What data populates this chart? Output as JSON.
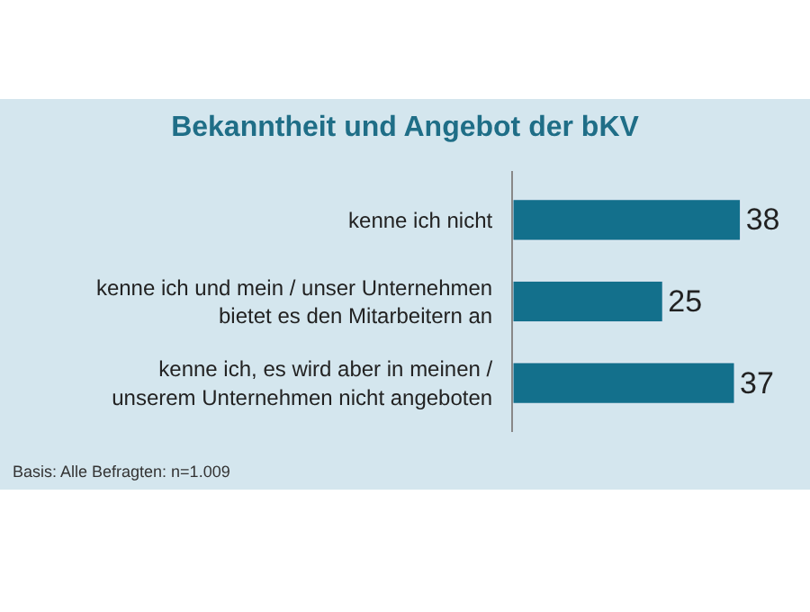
{
  "chart_data": {
    "type": "bar",
    "orientation": "horizontal",
    "title": "Bekanntheit und Angebot der bKV",
    "categories": [
      "kenne ich nicht",
      "kenne ich und mein / unser Unternehmen\nbietet es den Mitarbeitern an",
      "kenne ich, es wird aber in meinen /\nunserem Unternehmen nicht angeboten"
    ],
    "values": [
      38,
      25,
      37
    ],
    "color": "#13708c",
    "data_labels": true,
    "tick_labels": "y",
    "grid": false,
    "annotations": [
      "Basis: Alle Befragten: n=1.009"
    ]
  }
}
